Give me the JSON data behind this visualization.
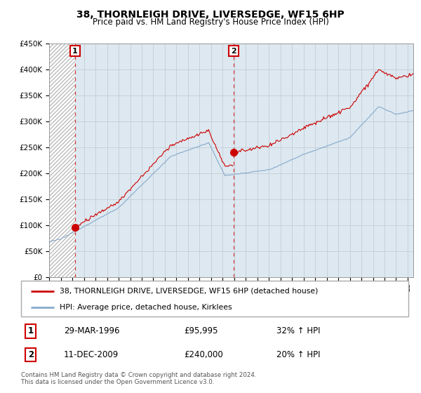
{
  "title": "38, THORNLEIGH DRIVE, LIVERSEDGE, WF15 6HP",
  "subtitle": "Price paid vs. HM Land Registry's House Price Index (HPI)",
  "ylabel_ticks": [
    "£0",
    "£50K",
    "£100K",
    "£150K",
    "£200K",
    "£250K",
    "£300K",
    "£350K",
    "£400K",
    "£450K"
  ],
  "ylim": [
    0,
    450000
  ],
  "xlim_start": 1994.0,
  "xlim_end": 2025.5,
  "purchase1_x": 1996.23,
  "purchase1_y": 95995,
  "purchase2_x": 2009.95,
  "purchase2_y": 240000,
  "legend_line1": "38, THORNLEIGH DRIVE, LIVERSEDGE, WF15 6HP (detached house)",
  "legend_line2": "HPI: Average price, detached house, Kirklees",
  "footer1": "Contains HM Land Registry data © Crown copyright and database right 2024.",
  "footer2": "This data is licensed under the Open Government Licence v3.0.",
  "purchase1_date_str": "29-MAR-1996",
  "purchase2_date_str": "11-DEC-2009",
  "purchase1_amount": "£95,995",
  "purchase2_amount": "£240,000",
  "purchase1_pct": "32% ↑ HPI",
  "purchase2_pct": "20% ↑ HPI",
  "red_color": "#cc0000",
  "blue_color": "#88aacc",
  "plot_bg": "#dde8f0",
  "grid_color": "#c0c8d0",
  "hatch_color": "#bbbbbb"
}
